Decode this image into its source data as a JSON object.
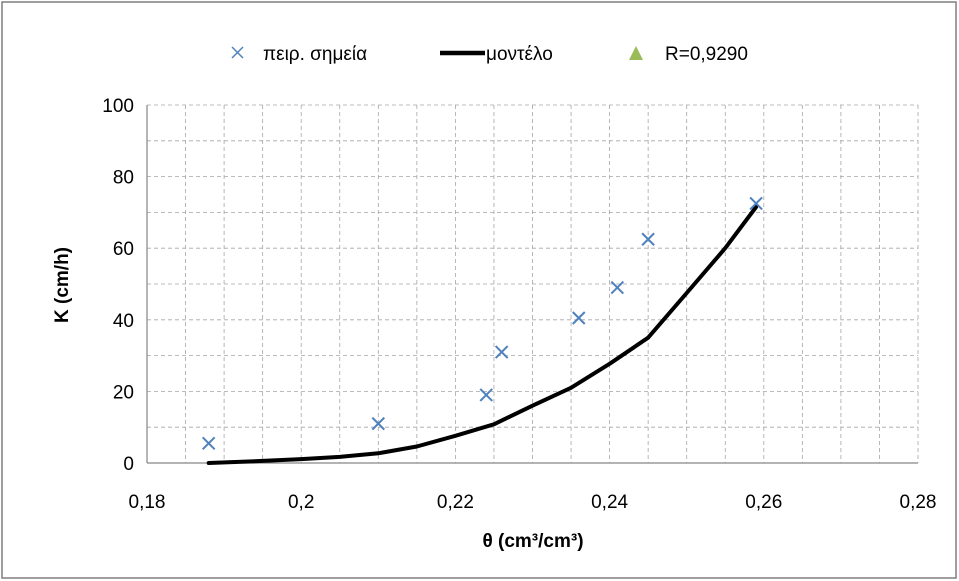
{
  "chart_data": {
    "type": "scatter",
    "title": "",
    "xlabel": "θ (cm³/cm³)",
    "ylabel": "K (cm/h)",
    "xlim": [
      0.18,
      0.28
    ],
    "ylim": [
      0,
      100
    ],
    "x_ticks": [
      0.18,
      0.19,
      0.2,
      0.21,
      0.22,
      0.23,
      0.24,
      0.25,
      0.26,
      0.27,
      0.28
    ],
    "x_tick_labels": [
      "0,18",
      "",
      "0,2",
      "",
      "0,22",
      "",
      "0,24",
      "",
      "0,26",
      "",
      "0,28"
    ],
    "y_ticks": [
      0,
      20,
      40,
      60,
      80,
      100
    ],
    "y_tick_labels": [
      "0",
      "20",
      "40",
      "60",
      "80",
      "100"
    ],
    "grid": true,
    "legend_position": "top",
    "series": [
      {
        "name": "πειρ. σημεία",
        "kind": "markers",
        "marker": "x",
        "color": "#4f81bd",
        "x": [
          0.188,
          0.21,
          0.224,
          0.226,
          0.236,
          0.241,
          0.245,
          0.259
        ],
        "y": [
          5.5,
          11,
          19,
          31,
          40.5,
          49,
          62.5,
          72.5
        ]
      },
      {
        "name": "μοντέλο",
        "kind": "line",
        "color": "#000000",
        "x": [
          0.188,
          0.195,
          0.2,
          0.205,
          0.21,
          0.215,
          0.22,
          0.225,
          0.23,
          0.235,
          0.24,
          0.245,
          0.25,
          0.255,
          0.259
        ],
        "y": [
          0,
          0.6,
          1.1,
          1.7,
          2.7,
          4.6,
          7.6,
          10.8,
          16,
          21,
          27.7,
          35,
          47.5,
          60,
          71.5
        ]
      },
      {
        "name": "R=0,9290",
        "kind": "legend-only",
        "marker": "triangle",
        "color": "#9bbb59",
        "x": [],
        "y": []
      }
    ]
  }
}
